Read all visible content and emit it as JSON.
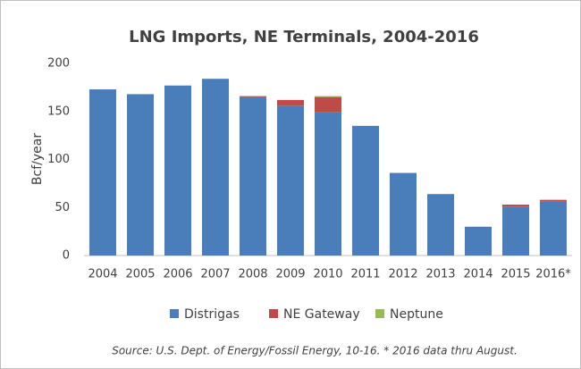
{
  "chart_data": {
    "type": "stacked_bar",
    "title": "LNG Imports, NE Terminals, 2004-2016",
    "y_label": "Bcf/year",
    "categories": [
      "2004",
      "2005",
      "2006",
      "2007",
      "2008",
      "2009",
      "2010",
      "2011",
      "2012",
      "2013",
      "2014",
      "2015",
      "2016*"
    ],
    "series": [
      {
        "name": "Distrigas",
        "color": "#4a7ebb",
        "values": [
          173,
          168,
          177,
          184,
          165,
          156,
          149,
          135,
          86,
          64,
          30,
          51,
          56
        ]
      },
      {
        "name": "NE Gateway",
        "color": "#be4b48",
        "values": [
          0,
          0,
          0,
          0,
          1,
          6,
          16,
          0,
          0,
          0,
          0,
          2,
          2
        ]
      },
      {
        "name": "Neptune",
        "color": "#98b954",
        "values": [
          0,
          0,
          0,
          0,
          0,
          0,
          1,
          0,
          0,
          0,
          0,
          0,
          0
        ]
      }
    ],
    "ylim": [
      0,
      200
    ],
    "yticks": [
      0,
      50,
      100,
      150,
      200
    ],
    "grid": false,
    "legend": "bottom",
    "source": "Source: U.S. Dept. of Energy/Fossil Energy, 10-16. * 2016 data thru August."
  }
}
